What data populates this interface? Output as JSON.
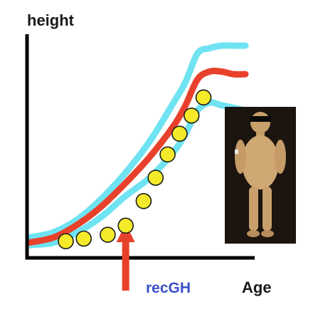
{
  "chart_data": {
    "type": "line",
    "ylabel": "height",
    "xlabel": "Age",
    "title": "",
    "grid": false,
    "legend": "none",
    "x_ticks": [],
    "y_ticks": [],
    "series": [
      {
        "kind": "band",
        "color": "#6fe3f2",
        "upper_x": [
          0,
          2,
          4,
          6,
          8,
          10,
          12,
          13,
          14,
          15,
          16,
          17,
          18
        ],
        "upper_y": [
          3,
          5,
          10,
          18,
          28,
          40,
          55,
          63,
          74,
          76,
          77,
          77,
          77
        ],
        "lower_x": [
          0,
          2,
          4,
          6,
          8,
          10,
          12,
          13,
          14,
          15,
          16,
          17,
          18
        ],
        "lower_y": [
          0,
          1,
          5,
          11,
          19,
          26,
          36,
          43,
          52,
          55,
          54,
          53,
          52
        ]
      },
      {
        "kind": "line",
        "color": "#e8412b",
        "x": [
          0,
          2,
          4,
          6,
          8,
          10,
          12,
          13,
          14,
          15,
          16,
          17,
          18
        ],
        "y": [
          1,
          3,
          8,
          15,
          24,
          34,
          46,
          54,
          64,
          67,
          67,
          66,
          66
        ]
      },
      {
        "kind": "points",
        "color": "#f4ea2a",
        "x": [
          3.0,
          4.5,
          6.5,
          8.0,
          9.5,
          10.5,
          11.5,
          12.5,
          13.5,
          14.5
        ],
        "y": [
          1.5,
          2.5,
          4.0,
          7.5,
          17,
          26,
          35,
          43,
          50,
          57
        ]
      }
    ],
    "xlim": [
      0,
      18
    ],
    "ylim": [
      -3,
      85
    ],
    "annotation": {
      "label": "recGH",
      "x": 8.0,
      "color": "#e8412b"
    }
  },
  "photo": {
    "description_icon": "child-photo"
  }
}
